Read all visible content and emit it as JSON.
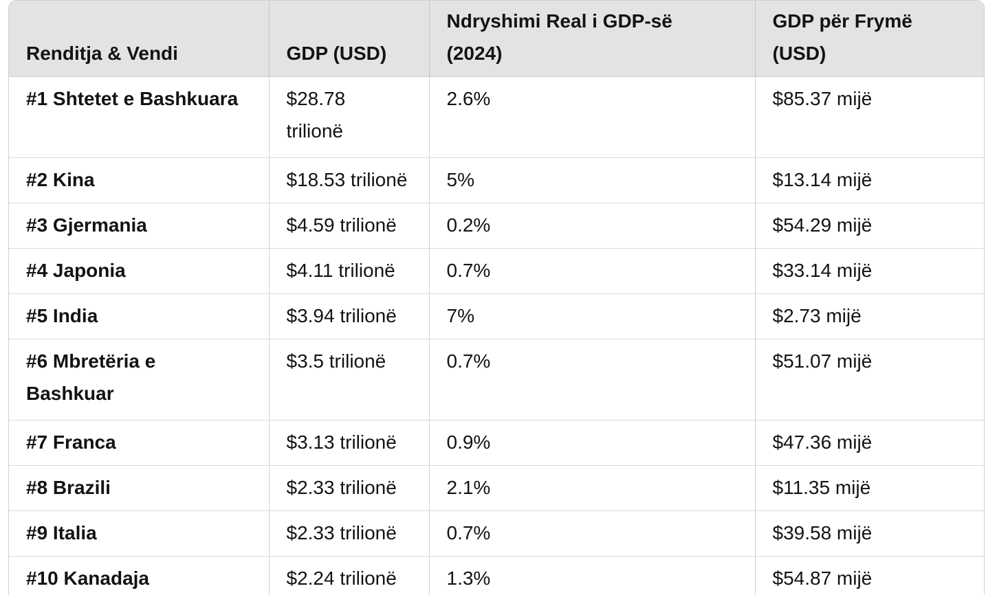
{
  "colors": {
    "header_background": "#e3e3e3",
    "row_background": "#ffffff",
    "border_vertical": "#c9c9c9",
    "border_horizontal": "#d9d9d9",
    "text": "#131313"
  },
  "table": {
    "columns": [
      {
        "label": "Renditja & Vendi"
      },
      {
        "label": "GDP (USD)"
      },
      {
        "label": "Ndryshimi Real i GDP-së\n(2024)"
      },
      {
        "label": "GDP për Frymë\n(USD)"
      }
    ],
    "rows": [
      {
        "rank_country": "#1 Shtetet e Bashkuara",
        "gdp": "$28.78\ntrilionë",
        "real_change": "2.6%",
        "gdp_per_capita": "$85.37 mijë"
      },
      {
        "rank_country": "#2 Kina",
        "gdp": "$18.53 trilionë",
        "real_change": "5%",
        "gdp_per_capita": "$13.14 mijë"
      },
      {
        "rank_country": "#3 Gjermania",
        "gdp": "$4.59 trilionë",
        "real_change": "0.2%",
        "gdp_per_capita": "$54.29 mijë"
      },
      {
        "rank_country": "#4 Japonia",
        "gdp": "$4.11 trilionë",
        "real_change": "0.7%",
        "gdp_per_capita": "$33.14 mijë"
      },
      {
        "rank_country": "#5 India",
        "gdp": "$3.94 trilionë",
        "real_change": "7%",
        "gdp_per_capita": "$2.73 mijë"
      },
      {
        "rank_country": "#6 Mbretëria e\nBashkuar",
        "gdp": "$3.5 trilionë",
        "real_change": "0.7%",
        "gdp_per_capita": "$51.07 mijë"
      },
      {
        "rank_country": "#7 Franca",
        "gdp": "$3.13 trilionë",
        "real_change": "0.9%",
        "gdp_per_capita": "$47.36 mijë"
      },
      {
        "rank_country": "#8 Brazili",
        "gdp": "$2.33 trilionë",
        "real_change": "2.1%",
        "gdp_per_capita": "$11.35 mijë"
      },
      {
        "rank_country": "#9 Italia",
        "gdp": "$2.33 trilionë",
        "real_change": "0.7%",
        "gdp_per_capita": "$39.58 mijë"
      },
      {
        "rank_country": "#10 Kanadaja",
        "gdp": "$2.24 trilionë",
        "real_change": "1.3%",
        "gdp_per_capita": "$54.87 mijë"
      }
    ]
  },
  "chart_data": {
    "type": "table",
    "title": "",
    "columns": [
      "Renditja & Vendi",
      "GDP (USD)",
      "Ndryshimi Real i GDP-së (2024)",
      "GDP për Frymë (USD)"
    ],
    "rows": [
      [
        "#1 Shtetet e Bashkuara",
        "$28.78 trilionë",
        "2.6%",
        "$85.37 mijë"
      ],
      [
        "#2 Kina",
        "$18.53 trilionë",
        "5%",
        "$13.14 mijë"
      ],
      [
        "#3 Gjermania",
        "$4.59 trilionë",
        "0.2%",
        "$54.29 mijë"
      ],
      [
        "#4 Japonia",
        "$4.11 trilionë",
        "0.7%",
        "$33.14 mijë"
      ],
      [
        "#5 India",
        "$3.94 trilionë",
        "7%",
        "$2.73 mijë"
      ],
      [
        "#6 Mbretëria e Bashkuar",
        "$3.5 trilionë",
        "0.7%",
        "$51.07 mijë"
      ],
      [
        "#7 Franca",
        "$3.13 trilionë",
        "0.9%",
        "$47.36 mijë"
      ],
      [
        "#8 Brazili",
        "$2.33 trilionë",
        "2.1%",
        "$11.35 mijë"
      ],
      [
        "#9 Italia",
        "$2.33 trilionë",
        "0.7%",
        "$39.58 mijë"
      ],
      [
        "#10 Kanadaja",
        "$2.24 trilionë",
        "1.3%",
        "$54.87 mijë"
      ]
    ]
  }
}
